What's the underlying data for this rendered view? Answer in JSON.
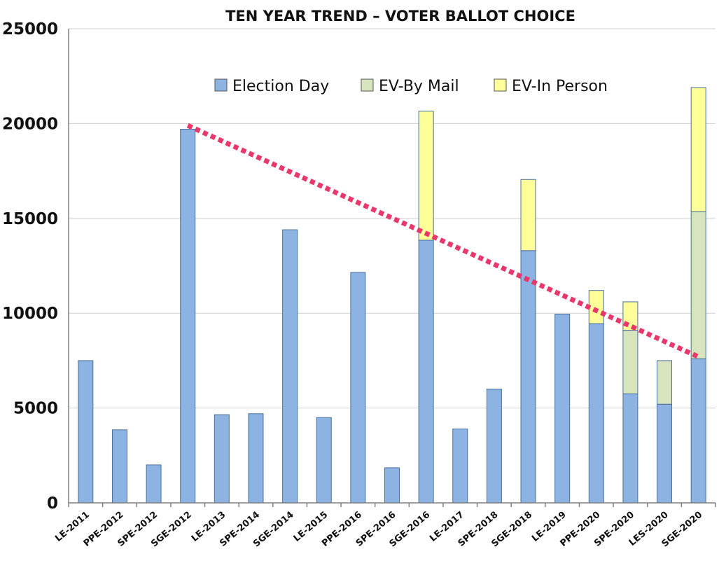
{
  "chart_data": {
    "type": "bar",
    "stacked": true,
    "title": "TEN YEAR TREND – VOTER BALLOT CHOICE",
    "xlabel": "",
    "ylabel": "",
    "ylim": [
      0,
      25000
    ],
    "yticks": [
      0,
      5000,
      10000,
      15000,
      20000,
      25000
    ],
    "ytick_labels": [
      "0",
      "5000",
      "10000",
      "15000",
      "20000",
      "25000"
    ],
    "grid": true,
    "legend": "top-right",
    "categories": [
      "LE-2011",
      "PPE-2012",
      "SPE-2012",
      "SGE-2012",
      "LE-2013",
      "SPE-2014",
      "SGE-2014",
      "LE-2015",
      "PPE-2016",
      "SPE-2016",
      "SGE-2016",
      "LE-2017",
      "SPE-2018",
      "SGE-2018",
      "LE-2019",
      "PPE-2020",
      "SPE-2020",
      "LES-2020",
      "SGE-2020"
    ],
    "series": [
      {
        "name": "Election Day",
        "color": "#8db3e2",
        "values": [
          7500,
          3850,
          2000,
          19700,
          4650,
          4700,
          14400,
          4500,
          12150,
          1850,
          13850,
          3900,
          6000,
          13300,
          9950,
          9450,
          5750,
          5200,
          7600
        ]
      },
      {
        "name": "EV-By Mail",
        "color": "#d7e4bd",
        "values": [
          0,
          0,
          0,
          0,
          0,
          0,
          0,
          0,
          0,
          0,
          0,
          0,
          0,
          0,
          0,
          0,
          3350,
          2300,
          7750
        ]
      },
      {
        "name": "EV-In Person",
        "color": "#ffff99",
        "values": [
          0,
          0,
          0,
          0,
          0,
          0,
          0,
          0,
          0,
          0,
          6800,
          0,
          0,
          3750,
          0,
          1750,
          1500,
          0,
          6550
        ]
      }
    ],
    "trendline": {
      "color": "#e8386b",
      "style": "dotted",
      "from": {
        "category": "SGE-2012",
        "value": 19900
      },
      "to": {
        "category": "SGE-2020",
        "value": 7700
      }
    }
  }
}
